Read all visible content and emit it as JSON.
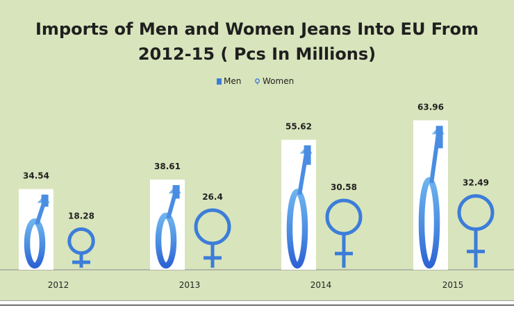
{
  "chart_data": {
    "type": "bar",
    "title_line1": "Imports of Men and Women Jeans Into EU From",
    "title_line2": "2012-15 ( Pcs In Millions)",
    "categories": [
      "2012",
      "2013",
      "2014",
      "2015"
    ],
    "series": [
      {
        "name": "Men",
        "values": [
          34.54,
          38.61,
          55.62,
          63.96
        ],
        "color": "#3c7dd9",
        "icon": "male-symbol-icon"
      },
      {
        "name": "Women",
        "values": [
          18.28,
          26.4,
          30.58,
          32.49
        ],
        "color": "#3c7dd9",
        "icon": "female-symbol-icon"
      }
    ],
    "legend_position": "top-center",
    "ylim": [
      0,
      80
    ],
    "grid": false,
    "colors": {
      "background": "#d8e4bc",
      "men": "#3c7dd9",
      "women": "#3c7dd9"
    }
  }
}
